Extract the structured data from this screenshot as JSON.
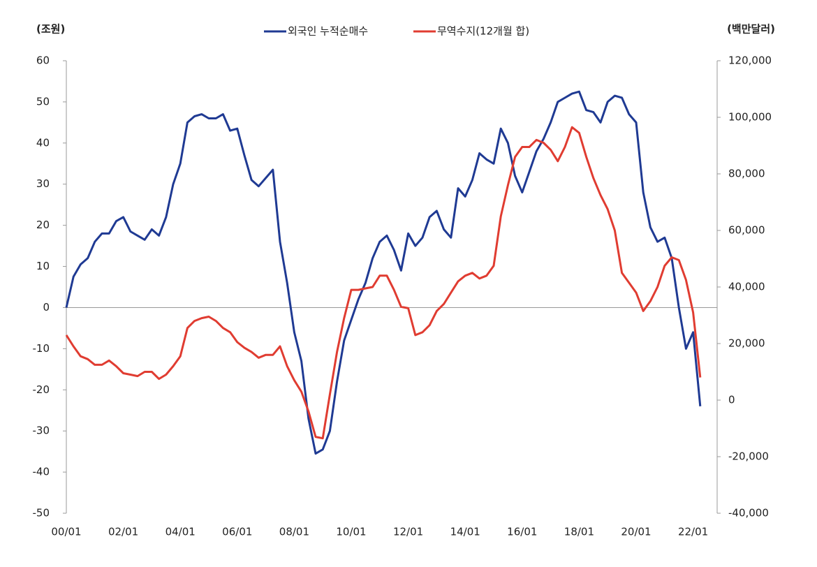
{
  "chart_data": {
    "type": "line",
    "y_label": "(조원)",
    "y2_label": "(백만달러)",
    "categories": [
      "00/01",
      null,
      null,
      null,
      null,
      null,
      null,
      null,
      "02/01",
      null,
      null,
      null,
      null,
      null,
      null,
      null,
      "04/01",
      null,
      null,
      null,
      null,
      null,
      null,
      null,
      "06/01",
      null,
      null,
      null,
      null,
      null,
      null,
      null,
      "08/01",
      null,
      null,
      null,
      null,
      null,
      null,
      null,
      "10/01",
      null,
      null,
      null,
      null,
      null,
      null,
      null,
      "12/01",
      null,
      null,
      null,
      null,
      null,
      null,
      null,
      "14/01",
      null,
      null,
      null,
      null,
      null,
      null,
      null,
      "16/01",
      null,
      null,
      null,
      null,
      null,
      null,
      null,
      "18/01",
      null,
      null,
      null,
      null,
      null,
      null,
      null,
      "20/01",
      null,
      null,
      null,
      null,
      null,
      null,
      null,
      "22/01",
      null
    ],
    "series": [
      {
        "name": "외국인 누적순매수",
        "color": "#1f3a93",
        "axis": "y",
        "values": [
          0,
          7.5,
          10.5,
          12,
          16,
          18,
          18,
          21,
          22,
          18.5,
          17.5,
          16.5,
          19,
          17.5,
          22,
          30,
          35,
          45,
          46.5,
          47,
          46,
          46,
          47,
          43,
          43.5,
          37,
          31,
          29.5,
          31.5,
          33.5,
          16,
          6,
          -6,
          -13,
          -27,
          -35.5,
          -34.5,
          -30,
          -18,
          -8,
          -3,
          2,
          6,
          12,
          16,
          17.5,
          14,
          9,
          18,
          15,
          17,
          22,
          23.5,
          19,
          17,
          29,
          27,
          31,
          37.5,
          36,
          35,
          43.5,
          40,
          32,
          28,
          33,
          38,
          41,
          45,
          50,
          51,
          52,
          52.5,
          48,
          47.5,
          45,
          50,
          51.5,
          51,
          47,
          45,
          28,
          19.5,
          16,
          17,
          12,
          0,
          -10,
          -6,
          -24
        ]
      },
      {
        "name": "무역수지(12개월 합)",
        "color": "#e03c31",
        "axis": "y2",
        "values": [
          23000,
          19000,
          15500,
          14500,
          12500,
          12500,
          14000,
          12000,
          9500,
          9000,
          8500,
          10000,
          10000,
          7500,
          9000,
          12000,
          15500,
          25500,
          28000,
          29000,
          29500,
          28000,
          25500,
          24000,
          20500,
          18500,
          17000,
          15000,
          16000,
          16000,
          19000,
          12000,
          7000,
          3000,
          -4000,
          -13000,
          -13500,
          2000,
          17000,
          29000,
          39000,
          39000,
          39500,
          40000,
          44000,
          44000,
          39000,
          33000,
          32500,
          23000,
          24000,
          26500,
          31500,
          34000,
          38000,
          42000,
          44000,
          45000,
          43000,
          44000,
          47500,
          65000,
          76000,
          86000,
          89500,
          89500,
          92000,
          91000,
          88500,
          84500,
          89500,
          96500,
          94500,
          86000,
          78500,
          72500,
          67500,
          60000,
          45000,
          41500,
          38000,
          31500,
          35000,
          40000,
          47500,
          50500,
          49500,
          42500,
          31000,
          8000
        ]
      }
    ],
    "ylim": [
      -50,
      60
    ],
    "yticks": [
      -50,
      -40,
      -30,
      -20,
      -10,
      0,
      10,
      20,
      30,
      40,
      50,
      60
    ],
    "y2lim": [
      -40000,
      120000
    ],
    "y2ticks": [
      {
        "value": -40000,
        "label": "-40,000"
      },
      {
        "value": -20000,
        "label": "-20,000"
      },
      0,
      {
        "value": 20000,
        "label": "20,000"
      },
      {
        "value": 40000,
        "label": "40,000"
      },
      {
        "value": 60000,
        "label": "60,000"
      },
      {
        "value": 80000,
        "label": "80,000"
      },
      {
        "value": 100000,
        "label": "100,000"
      },
      {
        "value": 120000,
        "label": "120,000"
      }
    ]
  }
}
